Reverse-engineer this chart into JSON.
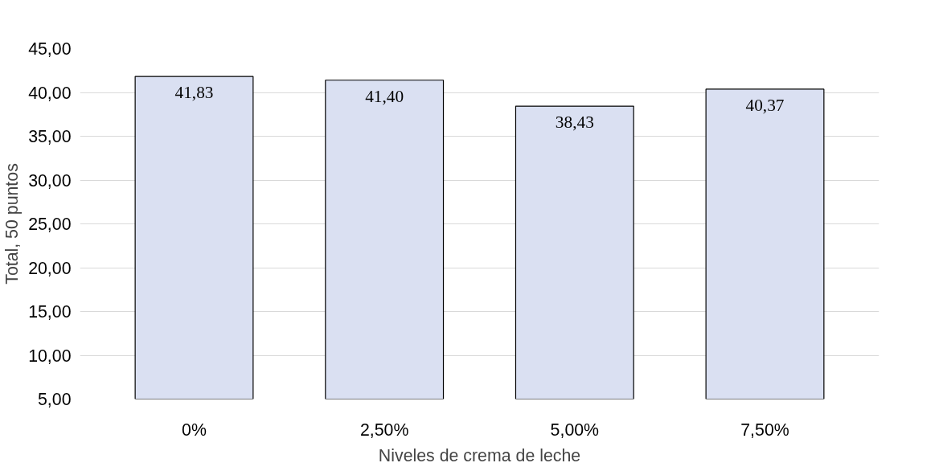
{
  "chart_data": {
    "type": "bar",
    "xlabel": "Niveles de crema de leche",
    "ylabel": "Total, 50 puntos",
    "categories": [
      "0%",
      "2,50%",
      "5,00%",
      "7,50%"
    ],
    "values": [
      41.83,
      41.4,
      38.43,
      40.37
    ],
    "value_labels": [
      "41,83",
      "41,40",
      "38,43",
      "40,37"
    ],
    "color": "#dae0f2",
    "ylim": [
      5,
      45
    ],
    "yticks": [
      {
        "value": 5,
        "label": "5,00"
      },
      {
        "value": 10,
        "label": "10,00"
      },
      {
        "value": 15,
        "label": "15,00"
      },
      {
        "value": 20,
        "label": "20,00"
      },
      {
        "value": 25,
        "label": "25,00"
      },
      {
        "value": 30,
        "label": "30,00"
      },
      {
        "value": 35,
        "label": "35,00"
      },
      {
        "value": 40,
        "label": "40,00"
      },
      {
        "value": 45,
        "label": "45,00"
      }
    ],
    "grid": "y"
  }
}
